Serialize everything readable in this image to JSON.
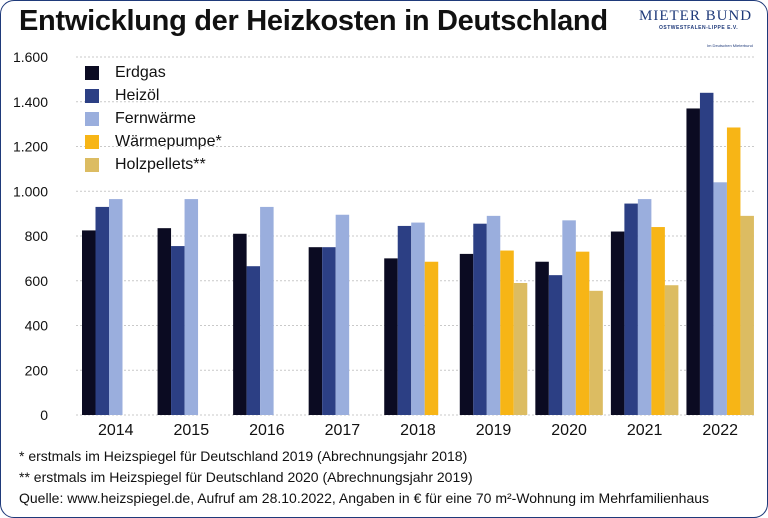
{
  "title": "Entwicklung der Heizkosten in Deutschland",
  "logo": {
    "name": "MIETER BUND",
    "sub": "OSTWESTFALEN-LIPPE E.V.",
    "tagline": "Im Deutschen Mieterbund"
  },
  "footnotes": [
    "* erstmals im Heizspiegel für Deutschland 2019 (Abrechnungsjahr 2018)",
    "** erstmals im Heizspiegel für Deutschland 2020 (Abrechnungsjahr 2019)",
    "Quelle: www.heizspiegel.de, Aufruf am 28.10.2022, Angaben in € für eine 70 m²-Wohnung im Mehrfamilienhaus"
  ],
  "colors": {
    "Erdgas": "#0b0b22",
    "Heizöl": "#2c3f84",
    "Fernwärme": "#9aaedd",
    "Wärmepumpe*": "#f7b516",
    "Holzpellets**": "#dcbc62",
    "grid": "#c9c9c9",
    "border": "#1f3a7a"
  },
  "chart_data": {
    "type": "bar",
    "title": "Entwicklung der Heizkosten in Deutschland",
    "xlabel": "",
    "ylabel": "",
    "ylim": [
      0,
      1600
    ],
    "yticks": [
      0,
      200,
      400,
      600,
      800,
      1000,
      1200,
      1400,
      1600
    ],
    "ytick_labels": [
      "0",
      "200",
      "400",
      "600",
      "800",
      "1.000",
      "1.200",
      "1.400",
      "1.600"
    ],
    "grid": true,
    "legend_position": "top-left",
    "categories": [
      "2014",
      "2015",
      "2016",
      "2017",
      "2018",
      "2019",
      "2020",
      "2021",
      "2022"
    ],
    "series": [
      {
        "name": "Erdgas",
        "values": [
          825,
          835,
          810,
          750,
          700,
          720,
          685,
          820,
          1370
        ]
      },
      {
        "name": "Heizöl",
        "values": [
          930,
          755,
          665,
          750,
          845,
          855,
          625,
          945,
          1440
        ]
      },
      {
        "name": "Fernwärme",
        "values": [
          965,
          965,
          930,
          895,
          860,
          890,
          870,
          965,
          1040
        ]
      },
      {
        "name": "Wärmepumpe*",
        "values": [
          null,
          null,
          null,
          null,
          685,
          735,
          730,
          840,
          1285
        ]
      },
      {
        "name": "Holzpellets**",
        "values": [
          null,
          null,
          null,
          null,
          null,
          590,
          555,
          580,
          890
        ]
      }
    ]
  }
}
